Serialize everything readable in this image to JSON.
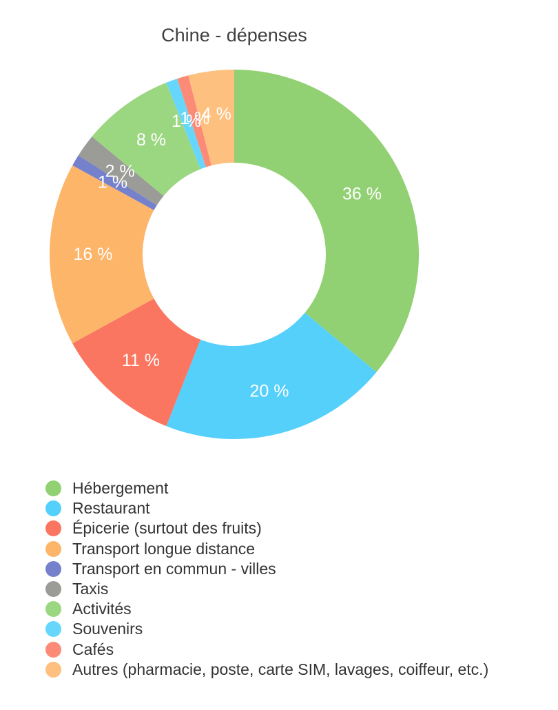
{
  "chart_data": {
    "type": "pie",
    "title": "Chine - dépenses",
    "donut": true,
    "legend_position": "bottom",
    "categories": [
      "Hébergement",
      "Restaurant",
      "Épicerie (surtout des fruits)",
      "Transport longue distance",
      "Transport en commun - villes",
      "Taxis",
      "Activités",
      "Souvenirs",
      "Cafés",
      "Autres (pharmacie, poste, carte SIM, lavages, coiffeur, etc.)"
    ],
    "values": [
      36,
      20,
      11,
      16,
      1,
      2,
      8,
      1,
      1,
      4
    ],
    "data_labels": [
      "36 %",
      "20 %",
      "11 %",
      "16 %",
      "1 %",
      "2 %",
      "8 %",
      "1 %",
      "1 %",
      "4 %"
    ],
    "colors": [
      "#92d173",
      "#55d0fb",
      "#fb7660",
      "#fdb56a",
      "#7681cc",
      "#9b9b98",
      "#9bd781",
      "#66d7fb",
      "#fb8b76",
      "#fec07f"
    ]
  }
}
